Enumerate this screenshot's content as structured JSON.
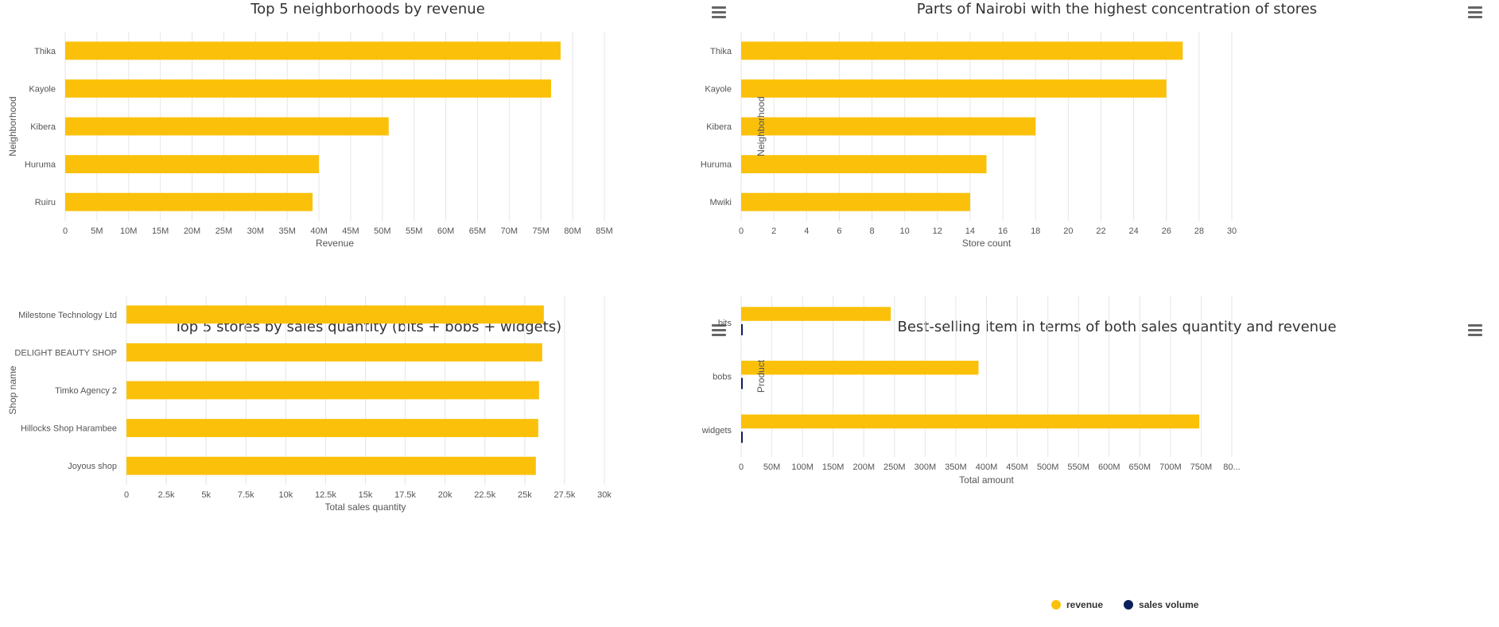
{
  "colors": {
    "bar": "#FBC10A",
    "volume": "#0B1F5C",
    "grid": "#E6E6E6",
    "axis_text": "#555555"
  },
  "menu_icon": "hamburger-menu-icon",
  "chart_data": [
    {
      "type": "bar",
      "orientation": "horizontal",
      "title": "Top 5 neighborhoods by revenue",
      "xlabel": "Revenue",
      "ylabel": "Neighborhood",
      "categories": [
        "Thika",
        "Kayole",
        "Kibera",
        "Huruma",
        "Ruiru"
      ],
      "series": [
        {
          "values": [
            78100000,
            76600000,
            51000000,
            40000000,
            39000000
          ]
        }
      ],
      "xlim": [
        0,
        85000000
      ],
      "ticks": [
        "0",
        "5M",
        "10M",
        "15M",
        "20M",
        "25M",
        "30M",
        "35M",
        "40M",
        "45M",
        "50M",
        "55M",
        "60M",
        "65M",
        "70M",
        "75M",
        "80M",
        "85M"
      ],
      "grid": true
    },
    {
      "type": "bar",
      "orientation": "horizontal",
      "title": "Parts of Nairobi with the highest concentration of stores",
      "xlabel": "Store count",
      "ylabel": "Neighborhood",
      "categories": [
        "Thika",
        "Kayole",
        "Kibera",
        "Huruma",
        "Mwiki"
      ],
      "series": [
        {
          "values": [
            27,
            26,
            18,
            15,
            14
          ]
        }
      ],
      "xlim": [
        0,
        30
      ],
      "ticks": [
        "0",
        "2",
        "4",
        "6",
        "8",
        "10",
        "12",
        "14",
        "16",
        "18",
        "20",
        "22",
        "24",
        "26",
        "28",
        "30"
      ],
      "grid": true
    },
    {
      "type": "bar",
      "orientation": "horizontal",
      "title": "Top 5 stores by sales quantity (bits + bobs + widgets)",
      "xlabel": "Total sales quantity",
      "ylabel": "Shop name",
      "categories": [
        "Milestone Technology Ltd",
        "DELIGHT BEAUTY SHOP",
        "Timko Agency 2",
        "Hillocks Shop Harambee",
        "Joyous shop"
      ],
      "series": [
        {
          "values": [
            26200,
            26100,
            25900,
            25850,
            25700
          ]
        }
      ],
      "xlim": [
        0,
        30000
      ],
      "ticks": [
        "0",
        "2.5k",
        "5k",
        "7.5k",
        "10k",
        "12.5k",
        "15k",
        "17.5k",
        "20k",
        "22.5k",
        "25k",
        "27.5k",
        "30k"
      ],
      "grid": true
    },
    {
      "type": "bar",
      "orientation": "horizontal",
      "title": "Best-selling item in terms of both sales quantity and revenue",
      "xlabel": "Total amount",
      "ylabel": "Product",
      "categories": [
        "bits",
        "bobs",
        "widgets"
      ],
      "series": [
        {
          "name": "revenue",
          "values": [
            244000000,
            387000000,
            747000000
          ]
        },
        {
          "name": "sales volume",
          "values": [
            250000,
            400000,
            750000
          ]
        }
      ],
      "xlim": [
        0,
        800000000
      ],
      "ticks": [
        "0",
        "50M",
        "100M",
        "150M",
        "200M",
        "250M",
        "300M",
        "350M",
        "400M",
        "450M",
        "500M",
        "550M",
        "600M",
        "650M",
        "700M",
        "750M",
        "80..."
      ],
      "grid": true,
      "legend": "bottom-center"
    }
  ]
}
